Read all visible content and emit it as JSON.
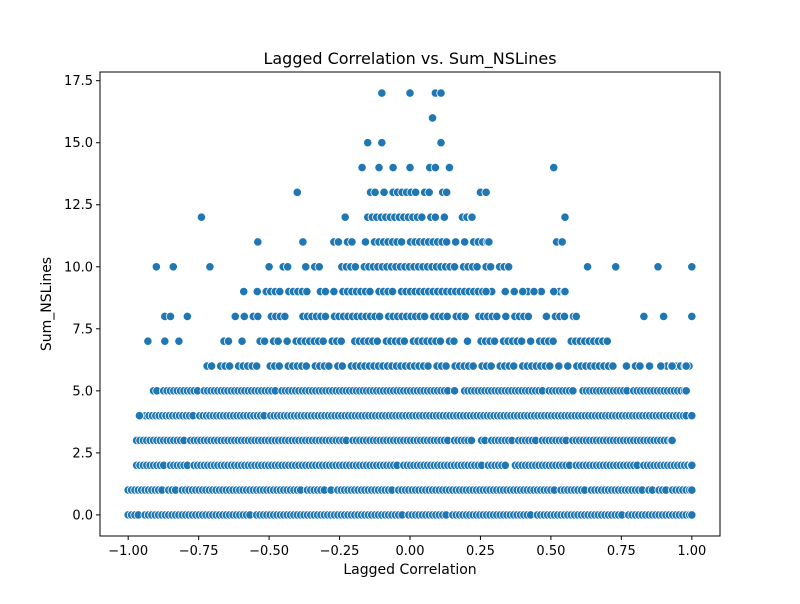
{
  "chart_data": {
    "type": "scatter",
    "title": "Lagged Correlation vs. Sum_NSLines",
    "xlabel": "Lagged Correlation",
    "ylabel": "Sum_NSLines",
    "xlim": [
      -1.1,
      1.1
    ],
    "ylim": [
      -0.85,
      17.85
    ],
    "xticks": [
      -1.0,
      -0.75,
      -0.5,
      -0.25,
      0.0,
      0.25,
      0.5,
      0.75,
      1.0
    ],
    "xtick_labels": [
      "−1.00",
      "−0.75",
      "−0.50",
      "−0.25",
      "0.00",
      "0.25",
      "0.50",
      "0.75",
      "1.00"
    ],
    "yticks": [
      0.0,
      2.5,
      5.0,
      7.5,
      10.0,
      12.5,
      15.0,
      17.5
    ],
    "ytick_labels": [
      "0.0",
      "2.5",
      "5.0",
      "7.5",
      "10.0",
      "12.5",
      "15.0",
      "17.5"
    ],
    "grid": false,
    "marker_color": "#1f77b4",
    "marker_edge_color": "#ffffff",
    "band_ranges": [
      {
        "y": 0,
        "xmin": -1.0,
        "xmax": 1.0
      },
      {
        "y": 1,
        "xmin": -1.0,
        "xmax": 1.0
      },
      {
        "y": 2,
        "xmin": -0.97,
        "xmax": 1.0
      },
      {
        "y": 3,
        "xmin": -0.97,
        "xmax": 0.93
      },
      {
        "y": 4,
        "xmin": -0.95,
        "xmax": 1.0
      },
      {
        "y": 5,
        "xmin": -0.91,
        "xmax": 0.98
      },
      {
        "y": 6,
        "xmin": -0.72,
        "xmax": 0.99
      },
      {
        "y": 7,
        "xmin": -0.66,
        "xmax": 0.7
      },
      {
        "y": 8,
        "xmin": -0.62,
        "xmax": 0.59
      },
      {
        "y": 9,
        "xmin": -0.59,
        "xmax": 0.55
      },
      {
        "y": 10,
        "xmin": -0.45,
        "xmax": 0.35
      },
      {
        "y": 11,
        "xmin": -0.27,
        "xmax": 0.28
      },
      {
        "y": 12,
        "xmin": -0.23,
        "xmax": 0.22
      },
      {
        "y": 13,
        "xmin": -0.14,
        "xmax": 0.13
      }
    ],
    "extra_points": [
      {
        "x": -0.1,
        "y": 17
      },
      {
        "x": 0.0,
        "y": 17
      },
      {
        "x": 0.09,
        "y": 17
      },
      {
        "x": 0.11,
        "y": 17
      },
      {
        "x": 0.08,
        "y": 16
      },
      {
        "x": -0.15,
        "y": 15
      },
      {
        "x": -0.1,
        "y": 15
      },
      {
        "x": 0.11,
        "y": 15
      },
      {
        "x": -0.17,
        "y": 14
      },
      {
        "x": -0.11,
        "y": 14
      },
      {
        "x": -0.06,
        "y": 14
      },
      {
        "x": 0.0,
        "y": 14
      },
      {
        "x": 0.07,
        "y": 14
      },
      {
        "x": 0.09,
        "y": 14
      },
      {
        "x": 0.14,
        "y": 14
      },
      {
        "x": 0.51,
        "y": 14
      },
      {
        "x": -0.4,
        "y": 13
      },
      {
        "x": 0.25,
        "y": 13
      },
      {
        "x": 0.27,
        "y": 13
      },
      {
        "x": -0.74,
        "y": 12
      },
      {
        "x": 0.55,
        "y": 12
      },
      {
        "x": -0.54,
        "y": 11
      },
      {
        "x": -0.38,
        "y": 11
      },
      {
        "x": 0.52,
        "y": 11
      },
      {
        "x": 0.54,
        "y": 11
      },
      {
        "x": -0.9,
        "y": 10
      },
      {
        "x": -0.84,
        "y": 10
      },
      {
        "x": -0.71,
        "y": 10
      },
      {
        "x": -0.5,
        "y": 10
      },
      {
        "x": 0.63,
        "y": 10
      },
      {
        "x": 0.73,
        "y": 10
      },
      {
        "x": 0.88,
        "y": 10
      },
      {
        "x": 1.0,
        "y": 10
      },
      {
        "x": -0.3,
        "y": 9
      },
      {
        "x": 0.27,
        "y": 9
      },
      {
        "x": 0.4,
        "y": 9
      },
      {
        "x": 0.44,
        "y": 9
      },
      {
        "x": 0.51,
        "y": 9
      },
      {
        "x": -0.87,
        "y": 8
      },
      {
        "x": -0.85,
        "y": 8
      },
      {
        "x": -0.79,
        "y": 8
      },
      {
        "x": 0.83,
        "y": 8
      },
      {
        "x": 0.9,
        "y": 8
      },
      {
        "x": 1.0,
        "y": 8
      },
      {
        "x": -0.93,
        "y": 7
      },
      {
        "x": -0.87,
        "y": 7
      },
      {
        "x": -0.82,
        "y": 7
      },
      {
        "x": 0.85,
        "y": 6
      },
      {
        "x": 0.89,
        "y": 6
      },
      {
        "x": 0.93,
        "y": 6
      },
      {
        "x": 0.98,
        "y": 6
      },
      {
        "x": -0.96,
        "y": 4
      },
      {
        "x": 0.98,
        "y": 4
      },
      {
        "x": 1.0,
        "y": 4
      }
    ]
  }
}
